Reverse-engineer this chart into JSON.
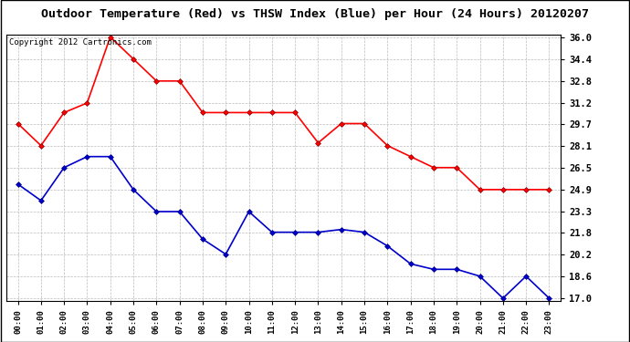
{
  "title": "Outdoor Temperature (Red) vs THSW Index (Blue) per Hour (24 Hours) 20120207",
  "copyright": "Copyright 2012 Cartronics.com",
  "x_labels": [
    "00:00",
    "01:00",
    "02:00",
    "03:00",
    "04:00",
    "05:00",
    "06:00",
    "07:00",
    "08:00",
    "09:00",
    "10:00",
    "11:00",
    "12:00",
    "13:00",
    "14:00",
    "15:00",
    "16:00",
    "17:00",
    "18:00",
    "19:00",
    "20:00",
    "21:00",
    "22:00",
    "23:00"
  ],
  "red_data": [
    29.7,
    28.1,
    30.5,
    31.2,
    36.0,
    34.4,
    32.8,
    32.8,
    30.5,
    30.5,
    30.5,
    30.5,
    30.5,
    28.3,
    29.7,
    29.7,
    28.1,
    27.3,
    26.5,
    26.5,
    24.9,
    24.9,
    24.9,
    24.9
  ],
  "blue_data": [
    25.3,
    24.1,
    26.5,
    27.3,
    27.3,
    24.9,
    23.3,
    23.3,
    21.3,
    20.2,
    23.3,
    21.8,
    21.8,
    21.8,
    22.0,
    21.8,
    20.8,
    19.5,
    19.1,
    19.1,
    18.6,
    17.0,
    18.6,
    17.0
  ],
  "y_ticks": [
    17.0,
    18.6,
    20.2,
    21.8,
    23.3,
    24.9,
    26.5,
    28.1,
    29.7,
    31.2,
    32.8,
    34.4,
    36.0
  ],
  "y_min": 17.0,
  "y_max": 36.0,
  "red_color": "#ff0000",
  "blue_color": "#0000cc",
  "bg_color": "#ffffff",
  "grid_color": "#bbbbbb",
  "title_fontsize": 9.5,
  "copyright_fontsize": 6.5,
  "marker": "D",
  "marker_size": 3,
  "line_width": 1.2
}
